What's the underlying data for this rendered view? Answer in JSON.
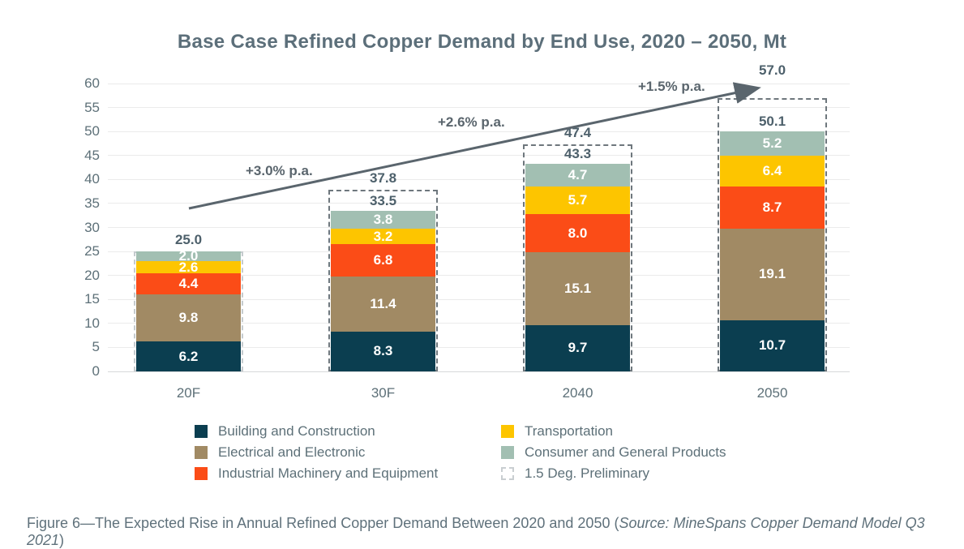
{
  "page": {
    "title": "Base Case Refined Copper Demand by End Use, 2020 – 2050, Mt",
    "caption_prefix": "Figure 6—The Expected Rise in Annual Refined Copper Demand Between 2020 and 2050 (",
    "caption_source": "Source: MineSpans Copper Demand Model Q3 2021",
    "caption_suffix": ")"
  },
  "colors": {
    "building": "#0b3e50",
    "electrical": "#a18a64",
    "industrial": "#fb4c17",
    "transportation": "#fdc500",
    "consumer": "#a2bfb2",
    "dashed_border": "#6e777d",
    "dashed_border_light": "#c5cbce",
    "arrow": "#5a656d",
    "title_text": "#5c6f7a",
    "axis_text": "#5d7078",
    "total_text": "#4d606b"
  },
  "chart_data": {
    "type": "bar",
    "stacked": true,
    "title": "Base Case Refined Copper Demand by End Use, 2020 – 2050, Mt",
    "unit": "Mt",
    "categories": [
      "20F",
      "30F",
      "2040",
      "2050"
    ],
    "series": [
      {
        "name": "Building and Construction",
        "color": "#0b3e50",
        "values": [
          6.2,
          8.3,
          9.7,
          10.7
        ]
      },
      {
        "name": "Electrical and Electronic",
        "color": "#a18a64",
        "values": [
          9.8,
          11.4,
          15.1,
          19.1
        ]
      },
      {
        "name": "Industrial Machinery and Equipment",
        "color": "#fb4c17",
        "values": [
          4.4,
          6.8,
          8.0,
          8.7
        ]
      },
      {
        "name": "Transportation",
        "color": "#fdc500",
        "values": [
          2.6,
          3.2,
          5.7,
          6.4
        ]
      },
      {
        "name": "Consumer and General Products",
        "color": "#a2bfb2",
        "values": [
          2.0,
          3.8,
          4.7,
          5.2
        ]
      }
    ],
    "totals_base": [
      25.0,
      33.5,
      43.3,
      50.1
    ],
    "show_base_total_label": [
      false,
      true,
      true,
      true
    ],
    "preliminary": {
      "name": "1.5 Deg. Preliminary",
      "values": [
        25.0,
        37.8,
        47.4,
        57.0
      ]
    },
    "growth_annotations": [
      {
        "label": "+3.0% p.a."
      },
      {
        "label": "+2.6% p.a."
      },
      {
        "label": "+1.5% p.a."
      }
    ],
    "y_ticks": [
      0,
      5,
      10,
      15,
      20,
      25,
      30,
      35,
      40,
      45,
      50,
      55,
      60
    ],
    "ylim": [
      0,
      60
    ],
    "grid": true,
    "legend_position": "bottom"
  },
  "legend": {
    "items": [
      {
        "label": "Building and Construction",
        "swatch": "#0b3e50"
      },
      {
        "label": "Electrical and Electronic",
        "swatch": "#a18a64"
      },
      {
        "label": "Industrial Machinery and Equipment",
        "swatch": "#fb4c17"
      },
      {
        "label": "Transportation",
        "swatch": "#fdc500"
      },
      {
        "label": "Consumer and General Products",
        "swatch": "#a2bfb2"
      },
      {
        "label": "1.5 Deg. Preliminary",
        "swatch": "dashed"
      }
    ]
  }
}
